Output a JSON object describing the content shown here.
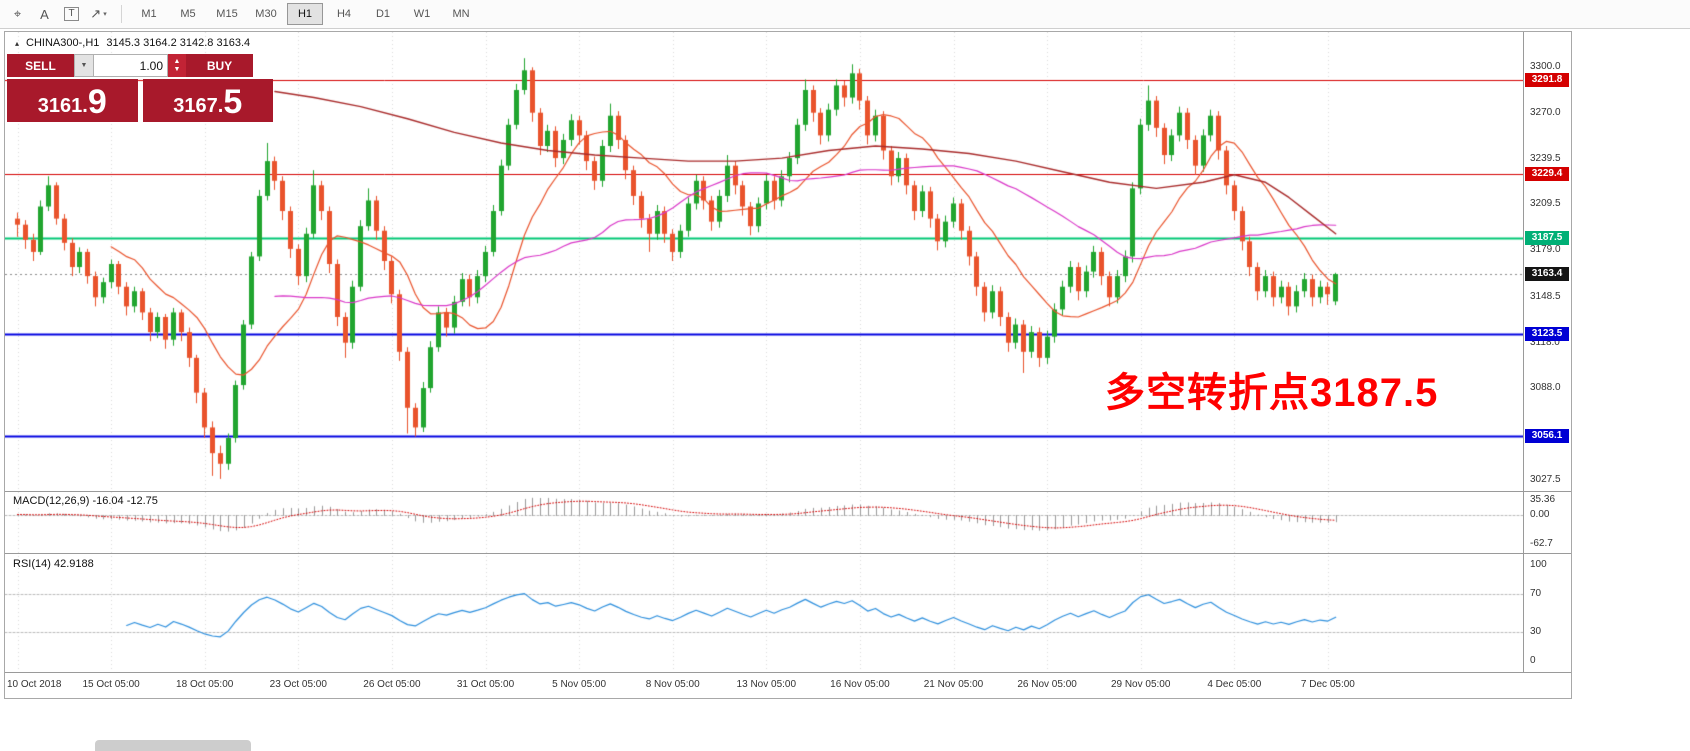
{
  "toolbar": {
    "tools": [
      {
        "name": "crosshair-tool",
        "glyph": "⌖"
      },
      {
        "name": "text-label-tool",
        "glyph": "A"
      },
      {
        "name": "text-tool",
        "glyph": "T"
      },
      {
        "name": "arrow-tools",
        "glyph": "↗",
        "caret": "▾"
      }
    ],
    "timeframes": [
      {
        "label": "M1"
      },
      {
        "label": "M5"
      },
      {
        "label": "M15"
      },
      {
        "label": "M30"
      },
      {
        "label": "H1",
        "active": true
      },
      {
        "label": "H4"
      },
      {
        "label": "D1"
      },
      {
        "label": "W1"
      },
      {
        "label": "MN"
      }
    ]
  },
  "chart": {
    "marker": "▴",
    "symbol_period": "CHINA300-,H1",
    "ohlc": "3145.3 3164.2 3142.8 3163.4"
  },
  "trade_panel": {
    "sell_label": "SELL",
    "buy_label": "BUY",
    "volume": "1.00",
    "dropdown_glyph": "▼",
    "spin_up_glyph": "▲",
    "spin_down_glyph": "▼",
    "sell_price": "3161.",
    "sell_price_big": "9",
    "buy_price": "3167.",
    "buy_price_big": "5"
  },
  "annotation": {
    "text": "多空转折点3187.5",
    "color": "#ff0000"
  },
  "price_scale": {
    "ticks": [
      "3300.0",
      "3270.0",
      "3239.5",
      "3209.5",
      "3179.0",
      "3148.5",
      "3118.0",
      "3088.0",
      "3027.5"
    ],
    "tags": [
      {
        "text": "3291.8",
        "bg": "#d40000"
      },
      {
        "text": "3229.4",
        "bg": "#d40000"
      },
      {
        "text": "3187.5",
        "bg": "#00b076"
      },
      {
        "text": "3163.4",
        "bg": "#141414"
      },
      {
        "text": "3123.5",
        "bg": "#0000d4"
      },
      {
        "text": "3056.1",
        "bg": "#0000d4"
      }
    ]
  },
  "macd_panel": {
    "title": "MACD(12,26,9) -16.04 -12.75",
    "ticks": [
      "35.36",
      "0.00",
      "-62.7"
    ]
  },
  "rsi_panel": {
    "title": "RSI(14) 42.9188",
    "ticks": [
      "100",
      "70",
      "30",
      "0"
    ]
  },
  "time_axis": {
    "labels": [
      "10 Oct 2018",
      "15 Oct 05:00",
      "18 Oct 05:00",
      "23 Oct 05:00",
      "26 Oct 05:00",
      "31 Oct 05:00",
      "5 Nov 05:00",
      "8 Nov 05:00",
      "13 Nov 05:00",
      "16 Nov 05:00",
      "21 Nov 05:00",
      "26 Nov 05:00",
      "29 Nov 05:00",
      "4 Dec 05:00",
      "7 Dec 05:00"
    ]
  },
  "colors": {
    "up": "#21a52f",
    "down": "#e9532c",
    "ma_fast": "#e9532c",
    "ma_mid": "#d936c8",
    "ma_slow": "#a82a2a",
    "rsi": "#2d8fdd",
    "macd_hist": "#9a9a9a",
    "macd_signal": "#d40000",
    "grid": "rgba(0,0,0,0.15)",
    "level": "#b8b8b8",
    "current_price_line": "#8a8a8a"
  },
  "chart_data": {
    "type": "candlestick",
    "symbol": "CHINA300-",
    "timeframe": "H1",
    "current_bar": {
      "open": 3145.3,
      "high": 3164.2,
      "low": 3142.8,
      "close": 3163.4
    },
    "current_price": 3163.4,
    "y_axis_range": [
      3020,
      3322
    ],
    "x_tick_candle_indices": [
      0,
      12,
      24,
      36,
      48,
      60,
      72,
      84,
      96,
      108,
      120,
      132,
      144,
      156,
      168
    ],
    "hlines": [
      {
        "value": 3291.8,
        "color": "#d40000",
        "width": 1
      },
      {
        "value": 3229.4,
        "color": "#d40000",
        "width": 1
      },
      {
        "value": 3187.5,
        "color": "#00c775",
        "width": 2
      },
      {
        "value": 3123.5,
        "color": "#0000e0",
        "width": 2
      },
      {
        "value": 3056.1,
        "color": "#0000e0",
        "width": 2
      }
    ],
    "moving_averages": [
      {
        "type": "sma",
        "period": 13,
        "color": "#e9532c"
      },
      {
        "type": "sma",
        "period": 34,
        "color": "#d936c8"
      },
      {
        "type": "anchors",
        "color": "#a82a2a",
        "points": [
          [
            33,
            3284
          ],
          [
            38,
            3280
          ],
          [
            44,
            3274
          ],
          [
            50,
            3266
          ],
          [
            56,
            3257
          ],
          [
            62,
            3250
          ],
          [
            68,
            3245
          ],
          [
            74,
            3242
          ],
          [
            80,
            3240
          ],
          [
            86,
            3238
          ],
          [
            92,
            3238
          ],
          [
            98,
            3240
          ],
          [
            104,
            3245
          ],
          [
            110,
            3248
          ],
          [
            116,
            3246
          ],
          [
            122,
            3243
          ],
          [
            128,
            3238
          ],
          [
            134,
            3231
          ],
          [
            140,
            3224
          ],
          [
            146,
            3220
          ],
          [
            152,
            3224
          ],
          [
            156,
            3229
          ],
          [
            160,
            3224
          ],
          [
            163,
            3214
          ],
          [
            166,
            3202
          ],
          [
            169,
            3190
          ]
        ]
      }
    ],
    "indicators": [
      {
        "type": "MACD",
        "params": [
          12,
          26,
          9
        ],
        "display_values": [
          -16.04,
          -12.75
        ],
        "axis_range": [
          -75,
          45
        ]
      },
      {
        "type": "RSI",
        "params": [
          14
        ],
        "display_value": 42.9188,
        "axis_range": [
          0,
          100
        ],
        "levels": [
          70,
          30
        ]
      }
    ],
    "candles": [
      [
        3200,
        3204,
        3188,
        3196
      ],
      [
        3196,
        3199,
        3180,
        3186
      ],
      [
        3186,
        3190,
        3172,
        3178
      ],
      [
        3178,
        3212,
        3176,
        3208
      ],
      [
        3208,
        3228,
        3205,
        3222
      ],
      [
        3222,
        3224,
        3196,
        3200
      ],
      [
        3200,
        3203,
        3179,
        3184
      ],
      [
        3184,
        3187,
        3162,
        3168
      ],
      [
        3168,
        3181,
        3164,
        3178
      ],
      [
        3178,
        3180,
        3157,
        3162
      ],
      [
        3162,
        3165,
        3142,
        3148
      ],
      [
        3148,
        3161,
        3144,
        3158
      ],
      [
        3158,
        3173,
        3154,
        3170
      ],
      [
        3170,
        3172,
        3150,
        3155
      ],
      [
        3155,
        3158,
        3136,
        3142
      ],
      [
        3142,
        3155,
        3138,
        3152
      ],
      [
        3152,
        3154,
        3133,
        3138
      ],
      [
        3138,
        3141,
        3119,
        3125
      ],
      [
        3125,
        3138,
        3121,
        3135
      ],
      [
        3135,
        3137,
        3114,
        3120
      ],
      [
        3120,
        3141,
        3116,
        3138
      ],
      [
        3138,
        3140,
        3119,
        3125
      ],
      [
        3125,
        3128,
        3102,
        3108
      ],
      [
        3108,
        3110,
        3078,
        3085
      ],
      [
        3085,
        3088,
        3055,
        3062
      ],
      [
        3062,
        3066,
        3030,
        3045
      ],
      [
        3045,
        3050,
        3028,
        3038
      ],
      [
        3038,
        3058,
        3034,
        3055
      ],
      [
        3055,
        3093,
        3052,
        3090
      ],
      [
        3090,
        3133,
        3087,
        3130
      ],
      [
        3130,
        3178,
        3127,
        3175
      ],
      [
        3175,
        3219,
        3172,
        3215
      ],
      [
        3215,
        3250,
        3212,
        3238
      ],
      [
        3238,
        3241,
        3219,
        3225
      ],
      [
        3225,
        3228,
        3199,
        3205
      ],
      [
        3205,
        3208,
        3174,
        3180
      ],
      [
        3180,
        3183,
        3156,
        3162
      ],
      [
        3162,
        3194,
        3158,
        3190
      ],
      [
        3190,
        3232,
        3187,
        3222
      ],
      [
        3222,
        3225,
        3199,
        3205
      ],
      [
        3205,
        3208,
        3164,
        3170
      ],
      [
        3170,
        3173,
        3129,
        3135
      ],
      [
        3135,
        3138,
        3108,
        3118
      ],
      [
        3118,
        3159,
        3114,
        3155
      ],
      [
        3155,
        3199,
        3152,
        3195
      ],
      [
        3195,
        3220,
        3192,
        3212
      ],
      [
        3212,
        3215,
        3186,
        3192
      ],
      [
        3192,
        3195,
        3166,
        3172
      ],
      [
        3172,
        3175,
        3144,
        3150
      ],
      [
        3150,
        3153,
        3106,
        3112
      ],
      [
        3112,
        3115,
        3058,
        3075
      ],
      [
        3075,
        3078,
        3056,
        3062
      ],
      [
        3062,
        3092,
        3059,
        3088
      ],
      [
        3088,
        3119,
        3085,
        3115
      ],
      [
        3115,
        3142,
        3112,
        3138
      ],
      [
        3138,
        3141,
        3122,
        3128
      ],
      [
        3128,
        3149,
        3124,
        3145
      ],
      [
        3145,
        3164,
        3142,
        3160
      ],
      [
        3160,
        3163,
        3142,
        3148
      ],
      [
        3148,
        3166,
        3144,
        3162
      ],
      [
        3162,
        3182,
        3158,
        3178
      ],
      [
        3178,
        3209,
        3175,
        3205
      ],
      [
        3205,
        3239,
        3202,
        3235
      ],
      [
        3235,
        3266,
        3232,
        3262
      ],
      [
        3262,
        3289,
        3259,
        3285
      ],
      [
        3285,
        3306,
        3282,
        3298
      ],
      [
        3298,
        3300,
        3264,
        3270
      ],
      [
        3270,
        3273,
        3242,
        3248
      ],
      [
        3248,
        3262,
        3244,
        3258
      ],
      [
        3258,
        3261,
        3234,
        3240
      ],
      [
        3240,
        3256,
        3236,
        3252
      ],
      [
        3252,
        3269,
        3248,
        3265
      ],
      [
        3265,
        3268,
        3249,
        3255
      ],
      [
        3255,
        3258,
        3232,
        3238
      ],
      [
        3238,
        3241,
        3219,
        3225
      ],
      [
        3225,
        3252,
        3221,
        3248
      ],
      [
        3248,
        3276,
        3244,
        3268
      ],
      [
        3268,
        3271,
        3246,
        3252
      ],
      [
        3252,
        3255,
        3226,
        3232
      ],
      [
        3232,
        3235,
        3209,
        3215
      ],
      [
        3215,
        3218,
        3194,
        3200
      ],
      [
        3200,
        3203,
        3178,
        3190
      ],
      [
        3190,
        3209,
        3186,
        3205
      ],
      [
        3205,
        3208,
        3184,
        3190
      ],
      [
        3190,
        3193,
        3172,
        3178
      ],
      [
        3178,
        3196,
        3174,
        3192
      ],
      [
        3192,
        3214,
        3188,
        3210
      ],
      [
        3210,
        3229,
        3206,
        3225
      ],
      [
        3225,
        3228,
        3206,
        3212
      ],
      [
        3212,
        3215,
        3192,
        3198
      ],
      [
        3198,
        3219,
        3194,
        3215
      ],
      [
        3215,
        3242,
        3211,
        3235
      ],
      [
        3235,
        3238,
        3216,
        3222
      ],
      [
        3222,
        3225,
        3202,
        3208
      ],
      [
        3208,
        3211,
        3189,
        3195
      ],
      [
        3195,
        3214,
        3191,
        3210
      ],
      [
        3210,
        3229,
        3206,
        3225
      ],
      [
        3225,
        3228,
        3206,
        3212
      ],
      [
        3212,
        3232,
        3208,
        3228
      ],
      [
        3228,
        3244,
        3224,
        3240
      ],
      [
        3240,
        3266,
        3236,
        3262
      ],
      [
        3262,
        3292,
        3258,
        3285
      ],
      [
        3285,
        3288,
        3264,
        3270
      ],
      [
        3270,
        3273,
        3249,
        3255
      ],
      [
        3255,
        3276,
        3251,
        3272
      ],
      [
        3272,
        3292,
        3268,
        3288
      ],
      [
        3288,
        3291,
        3274,
        3280
      ],
      [
        3280,
        3302,
        3276,
        3296
      ],
      [
        3296,
        3299,
        3272,
        3278
      ],
      [
        3278,
        3281,
        3249,
        3255
      ],
      [
        3255,
        3272,
        3251,
        3268
      ],
      [
        3268,
        3271,
        3239,
        3245
      ],
      [
        3245,
        3248,
        3222,
        3228
      ],
      [
        3228,
        3244,
        3224,
        3240
      ],
      [
        3240,
        3243,
        3216,
        3222
      ],
      [
        3222,
        3225,
        3199,
        3205
      ],
      [
        3205,
        3222,
        3201,
        3218
      ],
      [
        3218,
        3221,
        3194,
        3200
      ],
      [
        3200,
        3203,
        3179,
        3185
      ],
      [
        3185,
        3202,
        3181,
        3198
      ],
      [
        3198,
        3214,
        3194,
        3210
      ],
      [
        3210,
        3213,
        3186,
        3192
      ],
      [
        3192,
        3195,
        3169,
        3175
      ],
      [
        3175,
        3178,
        3149,
        3155
      ],
      [
        3155,
        3158,
        3132,
        3138
      ],
      [
        3138,
        3156,
        3134,
        3152
      ],
      [
        3152,
        3155,
        3129,
        3135
      ],
      [
        3135,
        3138,
        3112,
        3118
      ],
      [
        3118,
        3134,
        3114,
        3130
      ],
      [
        3130,
        3133,
        3098,
        3112
      ],
      [
        3112,
        3129,
        3108,
        3125
      ],
      [
        3125,
        3128,
        3102,
        3108
      ],
      [
        3108,
        3126,
        3104,
        3122
      ],
      [
        3122,
        3144,
        3118,
        3140
      ],
      [
        3140,
        3159,
        3136,
        3155
      ],
      [
        3155,
        3172,
        3151,
        3168
      ],
      [
        3168,
        3171,
        3146,
        3152
      ],
      [
        3152,
        3169,
        3148,
        3165
      ],
      [
        3165,
        3182,
        3161,
        3178
      ],
      [
        3178,
        3181,
        3156,
        3162
      ],
      [
        3162,
        3165,
        3142,
        3148
      ],
      [
        3148,
        3166,
        3144,
        3162
      ],
      [
        3162,
        3179,
        3158,
        3175
      ],
      [
        3175,
        3224,
        3171,
        3220
      ],
      [
        3220,
        3266,
        3216,
        3262
      ],
      [
        3262,
        3288,
        3258,
        3278
      ],
      [
        3278,
        3281,
        3254,
        3260
      ],
      [
        3260,
        3263,
        3236,
        3242
      ],
      [
        3242,
        3259,
        3238,
        3255
      ],
      [
        3255,
        3274,
        3251,
        3270
      ],
      [
        3270,
        3273,
        3246,
        3252
      ],
      [
        3252,
        3255,
        3229,
        3235
      ],
      [
        3235,
        3259,
        3231,
        3255
      ],
      [
        3255,
        3272,
        3251,
        3268
      ],
      [
        3268,
        3271,
        3239,
        3245
      ],
      [
        3245,
        3248,
        3216,
        3222
      ],
      [
        3222,
        3225,
        3199,
        3205
      ],
      [
        3205,
        3208,
        3179,
        3185
      ],
      [
        3185,
        3188,
        3162,
        3168
      ],
      [
        3168,
        3171,
        3146,
        3152
      ],
      [
        3152,
        3166,
        3148,
        3162
      ],
      [
        3162,
        3165,
        3142,
        3148
      ],
      [
        3148,
        3159,
        3144,
        3155
      ],
      [
        3155,
        3158,
        3136,
        3142
      ],
      [
        3142,
        3156,
        3138,
        3152
      ],
      [
        3152,
        3164,
        3148,
        3160
      ],
      [
        3160,
        3163,
        3142,
        3148
      ],
      [
        3148,
        3159,
        3144,
        3155
      ],
      [
        3155,
        3158,
        3143,
        3150
      ],
      [
        3145.3,
        3164.2,
        3142.8,
        3163.4
      ]
    ]
  }
}
